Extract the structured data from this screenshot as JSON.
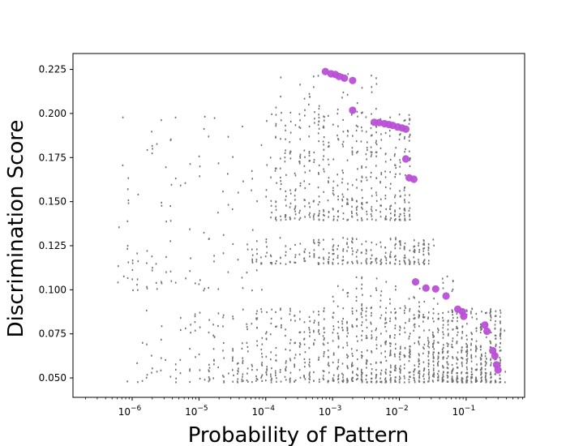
{
  "chart_data": {
    "type": "scatter",
    "title": "",
    "xlabel": "Probability of Pattern",
    "ylabel": "Discrimination Score",
    "xscale": "log",
    "xlim": [
      1.3e-07,
      0.75
    ],
    "ylim": [
      0.039,
      0.234
    ],
    "grid": false,
    "xticks": [
      {
        "value": 1e-06,
        "base": "10",
        "exp": "−6"
      },
      {
        "value": 1e-05,
        "base": "10",
        "exp": "−5"
      },
      {
        "value": 0.0001,
        "base": "10",
        "exp": "−4"
      },
      {
        "value": 0.001,
        "base": "10",
        "exp": "−3"
      },
      {
        "value": 0.01,
        "base": "10",
        "exp": "−2"
      },
      {
        "value": 0.1,
        "base": "10",
        "exp": "−1"
      }
    ],
    "yticks": [
      {
        "value": 0.05,
        "label": "0.050"
      },
      {
        "value": 0.075,
        "label": "0.075"
      },
      {
        "value": 0.1,
        "label": "0.100"
      },
      {
        "value": 0.125,
        "label": "0.125"
      },
      {
        "value": 0.15,
        "label": "0.150"
      },
      {
        "value": 0.175,
        "label": "0.175"
      },
      {
        "value": 0.2,
        "label": "0.200"
      },
      {
        "value": 0.225,
        "label": "0.225"
      }
    ],
    "colors": {
      "all_patterns": "#707070",
      "highlighted": "#b94fd6"
    },
    "series": [
      {
        "role": "all-patterns",
        "marker": "small-gray",
        "clusters": [
          {
            "x_range": [
              5.5e-07,
              0.35
            ],
            "y_range": [
              0.048,
              0.09
            ],
            "count": 1300,
            "x_bias": 2.2
          },
          {
            "x_range": [
              5e-05,
              0.03
            ],
            "y_range": [
              0.115,
              0.13
            ],
            "count": 260,
            "x_bias": 1.5
          },
          {
            "x_range": [
              0.0001,
              0.015
            ],
            "y_range": [
              0.14,
              0.2
            ],
            "count": 480,
            "x_bias": 1.3
          },
          {
            "x_range": [
              0.0001,
              0.005
            ],
            "y_range": [
              0.2,
              0.223
            ],
            "count": 40,
            "x_bias": 1.0
          },
          {
            "x_range": [
              5.5e-07,
              0.0001
            ],
            "y_range": [
              0.1,
              0.2
            ],
            "count": 120,
            "x_bias": 1.0
          },
          {
            "x_range": [
              0.001,
              0.08
            ],
            "y_range": [
              0.09,
              0.11
            ],
            "count": 60,
            "x_bias": 1.0
          }
        ]
      },
      {
        "role": "highlighted-frontier",
        "marker": "large-purple",
        "points": [
          {
            "x": 0.00078,
            "y": 0.2238
          },
          {
            "x": 0.00095,
            "y": 0.2225
          },
          {
            "x": 0.0011,
            "y": 0.2221
          },
          {
            "x": 0.00125,
            "y": 0.221
          },
          {
            "x": 0.0015,
            "y": 0.22
          },
          {
            "x": 0.002,
            "y": 0.2187
          },
          {
            "x": 0.002,
            "y": 0.2018
          },
          {
            "x": 0.0042,
            "y": 0.195
          },
          {
            "x": 0.005,
            "y": 0.1948
          },
          {
            "x": 0.006,
            "y": 0.1942
          },
          {
            "x": 0.007,
            "y": 0.1937
          },
          {
            "x": 0.008,
            "y": 0.1932
          },
          {
            "x": 0.0095,
            "y": 0.1924
          },
          {
            "x": 0.011,
            "y": 0.1918
          },
          {
            "x": 0.0125,
            "y": 0.1911
          },
          {
            "x": 0.0125,
            "y": 0.1742
          },
          {
            "x": 0.014,
            "y": 0.1635
          },
          {
            "x": 0.0165,
            "y": 0.1627
          },
          {
            "x": 0.0175,
            "y": 0.1045
          },
          {
            "x": 0.025,
            "y": 0.101
          },
          {
            "x": 0.035,
            "y": 0.1005
          },
          {
            "x": 0.05,
            "y": 0.0965
          },
          {
            "x": 0.075,
            "y": 0.089
          },
          {
            "x": 0.088,
            "y": 0.0875
          },
          {
            "x": 0.092,
            "y": 0.085
          },
          {
            "x": 0.19,
            "y": 0.08
          },
          {
            "x": 0.205,
            "y": 0.0765
          },
          {
            "x": 0.25,
            "y": 0.0655
          },
          {
            "x": 0.27,
            "y": 0.0625
          },
          {
            "x": 0.285,
            "y": 0.0575
          },
          {
            "x": 0.3,
            "y": 0.0545
          }
        ]
      }
    ]
  }
}
